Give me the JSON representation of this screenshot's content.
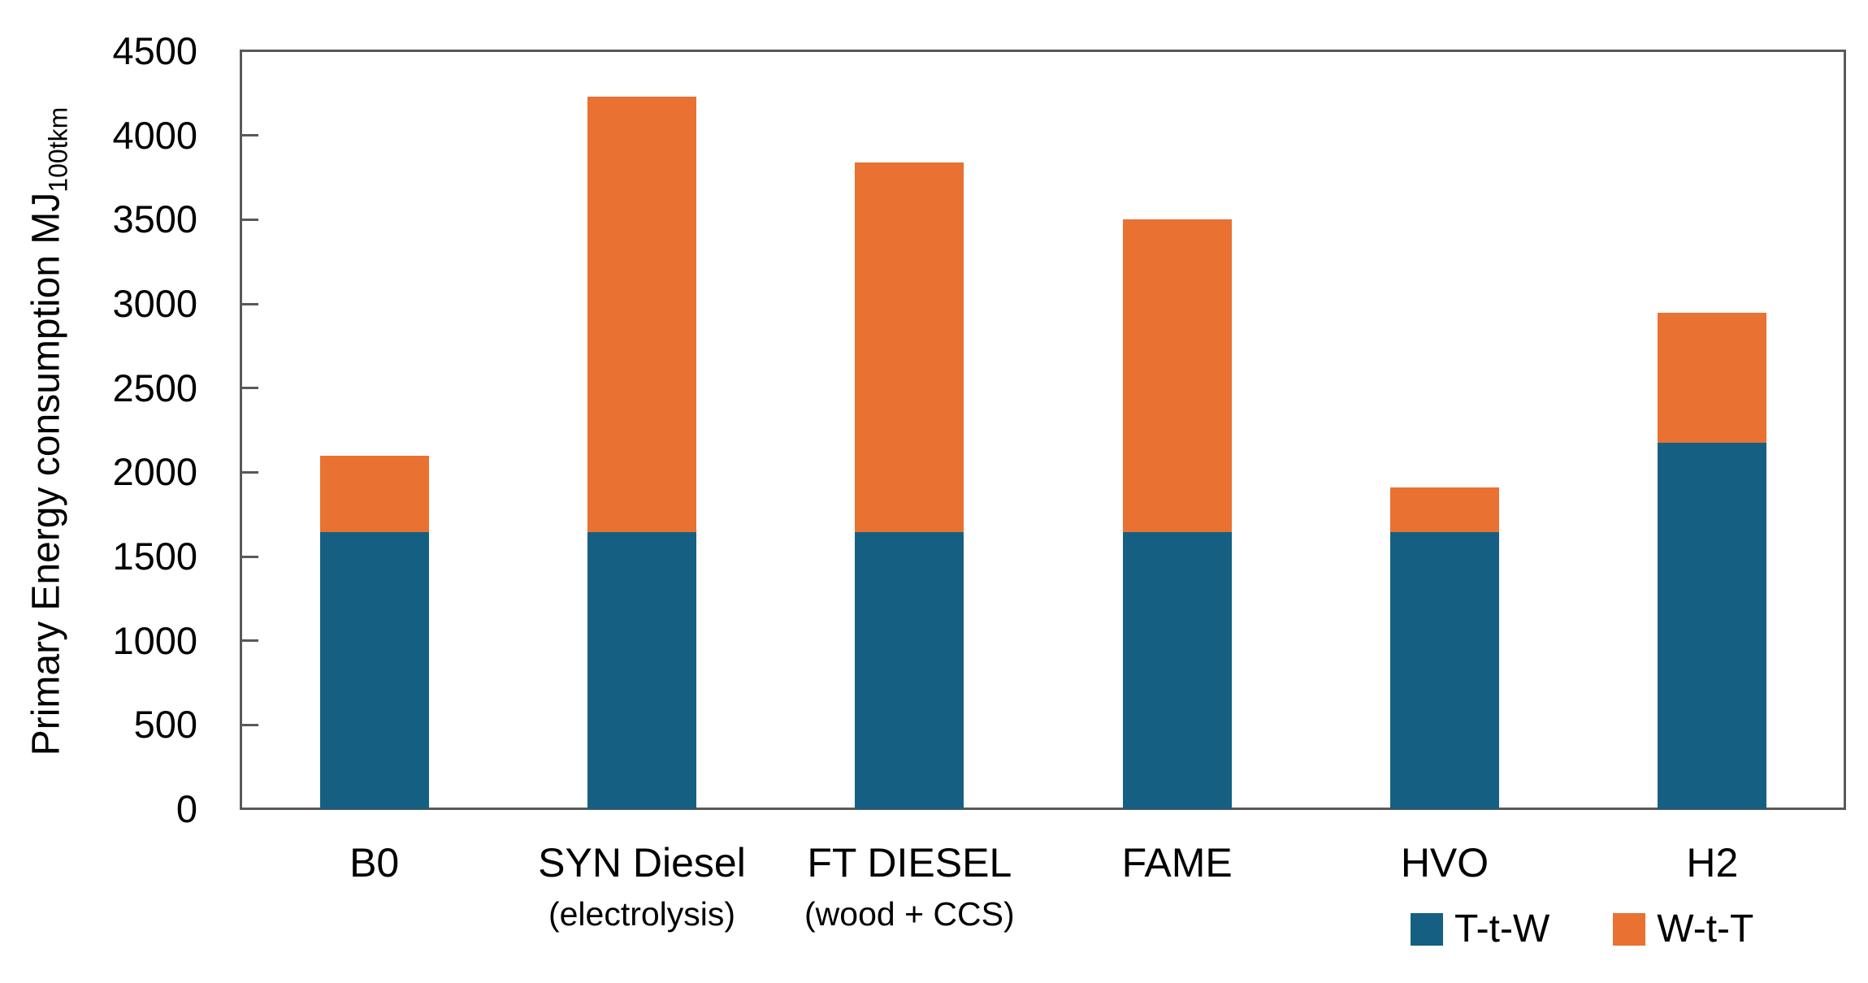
{
  "chart_data": {
    "type": "bar",
    "stacked": true,
    "title": "",
    "ylabel": "Primary Energy consumption MJ",
    "ylabel_subscript": "100tkm",
    "xlabel": "",
    "ylim": [
      0,
      4500
    ],
    "ytick_step": 500,
    "yticks": [
      0,
      500,
      1000,
      1500,
      2000,
      2500,
      3000,
      3500,
      4000,
      4500
    ],
    "grid": false,
    "legend_position": "bottom-right",
    "categories": [
      {
        "label": "B0",
        "sublabel": ""
      },
      {
        "label": "SYN Diesel",
        "sublabel": "(electrolysis)"
      },
      {
        "label": "FT DIESEL",
        "sublabel": "(wood + CCS)"
      },
      {
        "label": "FAME",
        "sublabel": ""
      },
      {
        "label": "HVO",
        "sublabel": ""
      },
      {
        "label": "H2",
        "sublabel": ""
      }
    ],
    "series": [
      {
        "name": "T-t-W",
        "color": "#156082",
        "values": [
          1645,
          1645,
          1645,
          1645,
          1645,
          2175
        ]
      },
      {
        "name": "W-t-T",
        "color": "#E97132",
        "values": [
          455,
          2585,
          2195,
          1855,
          265,
          770
        ]
      }
    ],
    "totals": [
      2100,
      4230,
      3840,
      3500,
      1910,
      2945
    ],
    "colors": {
      "axis": "#595959",
      "text": "#000000",
      "t_t_w": "#156082",
      "w_t_t": "#E97132"
    }
  }
}
